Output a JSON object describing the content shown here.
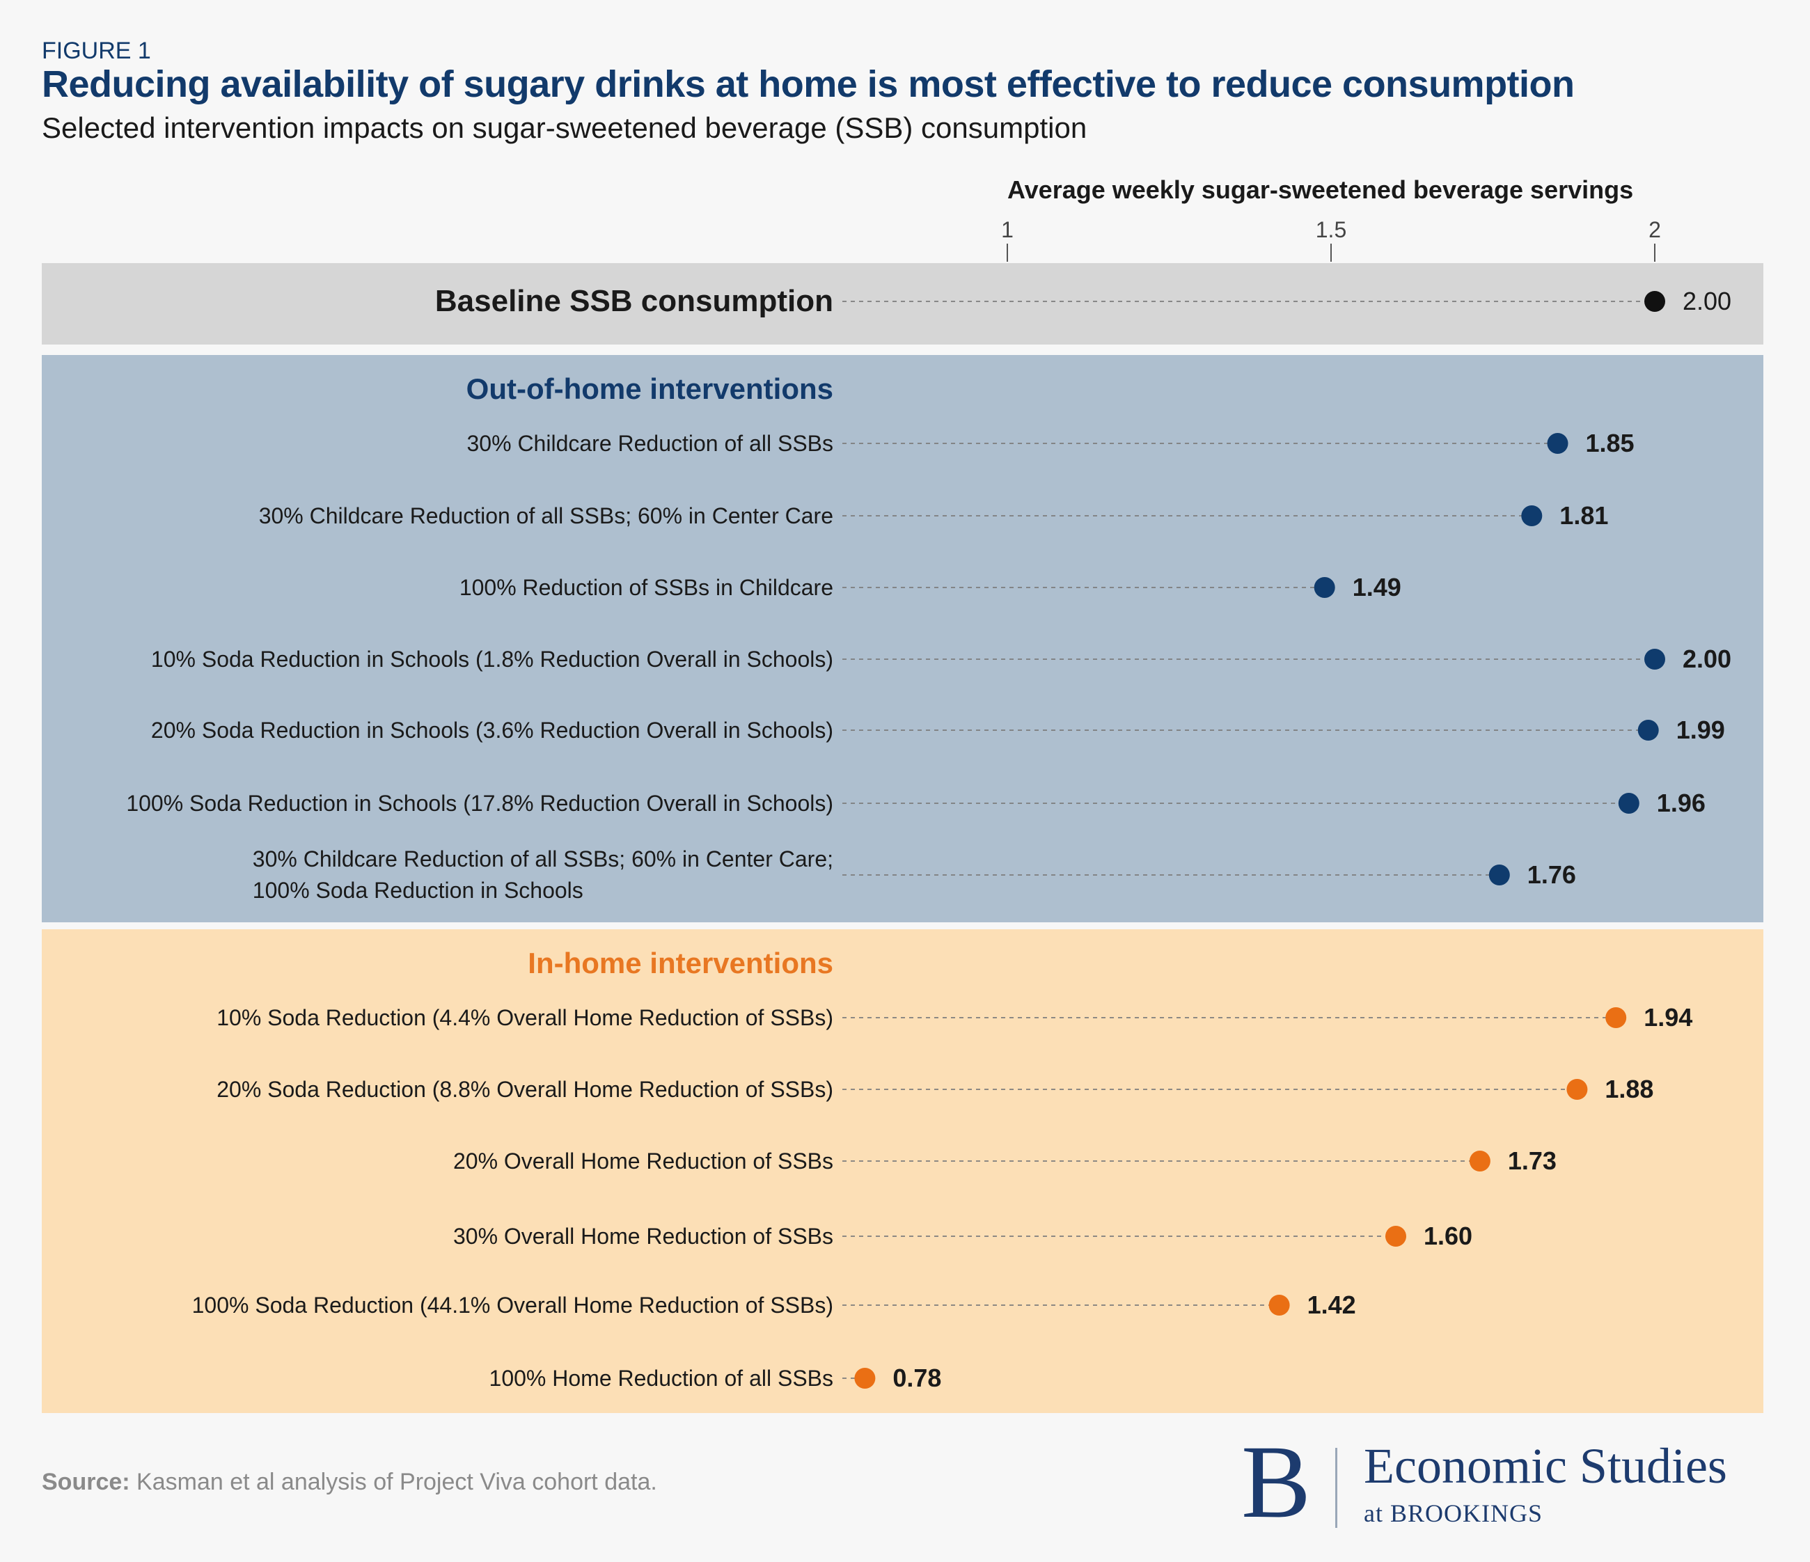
{
  "header": {
    "figure_label": "FIGURE 1",
    "title": "Reducing availability of sugary drinks at home is most effective to reduce consumption",
    "subtitle": "Selected intervention impacts on sugar-sweetened beverage (SSB) consumption"
  },
  "chart_data": {
    "type": "scatter",
    "orientation": "horizontal dot plot",
    "xlabel": "Average weekly sugar-sweetened beverage servings",
    "xticks": [
      1,
      1.5,
      2
    ],
    "xtick_labels": [
      "1",
      "1.5",
      "2"
    ],
    "axis_position": "top",
    "grid": false,
    "colors": {
      "baseline": "#111111",
      "out_of_home": "#0f3b6d",
      "in_home": "#ea6f14"
    },
    "baseline": {
      "label": "Baseline SSB consumption",
      "value": 2.0,
      "value_label": "2.00"
    },
    "groups": [
      {
        "name": "Out-of-home interventions",
        "items": [
          {
            "label": "30% Childcare Reduction of all SSBs",
            "value": 1.85,
            "value_label": "1.85"
          },
          {
            "label": "30% Childcare Reduction of all SSBs; 60% in Center Care",
            "value": 1.81,
            "value_label": "1.81"
          },
          {
            "label": "100% Reduction of SSBs in Childcare",
            "value": 1.49,
            "value_label": "1.49"
          },
          {
            "label": "10% Soda Reduction in Schools (1.8% Reduction Overall in Schools)",
            "value": 2.0,
            "value_label": "2.00"
          },
          {
            "label": "20% Soda Reduction in Schools (3.6% Reduction Overall in Schools)",
            "value": 1.99,
            "value_label": "1.99"
          },
          {
            "label": "100% Soda Reduction in Schools (17.8% Reduction Overall in Schools)",
            "value": 1.96,
            "value_label": "1.96"
          },
          {
            "label": "30% Childcare Reduction of all SSBs; 60% in Center Care;\n100% Soda Reduction in Schools",
            "value": 1.76,
            "value_label": "1.76"
          }
        ]
      },
      {
        "name": "In-home interventions",
        "items": [
          {
            "label": "10% Soda Reduction (4.4% Overall Home Reduction of SSBs)",
            "value": 1.94,
            "value_label": "1.94"
          },
          {
            "label": "20% Soda Reduction (8.8%  Overall Home Reduction of SSBs)",
            "value": 1.88,
            "value_label": "1.88"
          },
          {
            "label": "20% Overall Home Reduction of SSBs",
            "value": 1.73,
            "value_label": "1.73"
          },
          {
            "label": "30% Overall Home Reduction of SSBs",
            "value": 1.6,
            "value_label": "1.60"
          },
          {
            "label": "100% Soda Reduction (44.1% Overall Home Reduction of SSBs)",
            "value": 1.42,
            "value_label": "1.42"
          },
          {
            "label": "100% Home Reduction of all SSBs",
            "value": 0.78,
            "value_label": "0.78"
          }
        ]
      }
    ]
  },
  "footer": {
    "source_label": "Source:",
    "source_text": "Kasman et al analysis of Project Viva cohort data.",
    "logo_letter": "B",
    "logo_name": "Economic Studies",
    "logo_sub": "at BROOKINGS"
  }
}
